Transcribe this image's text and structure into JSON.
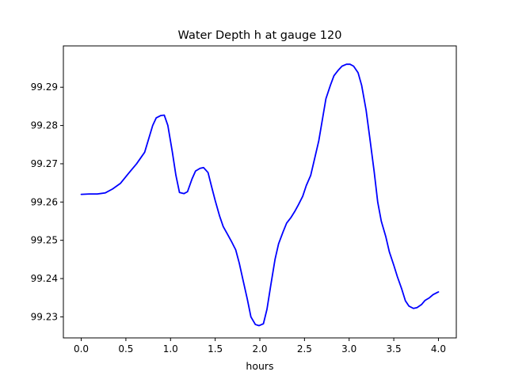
{
  "chart_data": {
    "type": "line",
    "title": "Water Depth h at gauge 120",
    "xlabel": "hours",
    "ylabel": "",
    "xlim": [
      -0.2,
      4.2
    ],
    "ylim": [
      99.2245,
      99.3008
    ],
    "xticks": [
      0.0,
      0.5,
      1.0,
      1.5,
      2.0,
      2.5,
      3.0,
      3.5,
      4.0
    ],
    "xtick_labels": [
      "0.0",
      "0.5",
      "1.0",
      "1.5",
      "2.0",
      "2.5",
      "3.0",
      "3.5",
      "4.0"
    ],
    "yticks": [
      99.23,
      99.24,
      99.25,
      99.26,
      99.27,
      99.28,
      99.29
    ],
    "ytick_labels": [
      "99.23",
      "99.24",
      "99.25",
      "99.26",
      "99.27",
      "99.28",
      "99.29"
    ],
    "grid": false,
    "line_color": "#0000ff",
    "series": [
      {
        "x": [
          0.0,
          0.09,
          0.18,
          0.27,
          0.35,
          0.44,
          0.53,
          0.62,
          0.71,
          0.8,
          0.84,
          0.89,
          0.93,
          0.97,
          1.02,
          1.06,
          1.1,
          1.15,
          1.19,
          1.24,
          1.28,
          1.33,
          1.37,
          1.42,
          1.46,
          1.5,
          1.55,
          1.59,
          1.64,
          1.68,
          1.73,
          1.77,
          1.81,
          1.86,
          1.9,
          1.95,
          1.99,
          2.04,
          2.08,
          2.12,
          2.17,
          2.21,
          2.26,
          2.3,
          2.35,
          2.39,
          2.43,
          2.48,
          2.52,
          2.57,
          2.61,
          2.66,
          2.7,
          2.74,
          2.79,
          2.83,
          2.88,
          2.92,
          2.97,
          3.01,
          3.05,
          3.1,
          3.14,
          3.19,
          3.23,
          3.28,
          3.32,
          3.36,
          3.41,
          3.45,
          3.5,
          3.54,
          3.59,
          3.63,
          3.67,
          3.72,
          3.76,
          3.81,
          3.85,
          3.9,
          3.94,
          3.99,
          4.0
        ],
        "y": [
          99.262,
          99.2621,
          99.2621,
          99.2624,
          99.2634,
          99.2649,
          99.2675,
          99.27,
          99.273,
          99.28,
          99.282,
          99.2826,
          99.2827,
          99.28,
          99.2731,
          99.267,
          99.2625,
          99.2622,
          99.2627,
          99.266,
          99.2681,
          99.2688,
          99.269,
          99.2677,
          99.264,
          99.2604,
          99.2563,
          99.2536,
          99.2515,
          99.2498,
          99.2475,
          99.244,
          99.2398,
          99.2346,
          99.23,
          99.228,
          99.2277,
          99.2282,
          99.232,
          99.2379,
          99.245,
          99.2491,
          99.2522,
          99.2545,
          99.256,
          99.2575,
          99.2592,
          99.2615,
          99.2643,
          99.267,
          99.271,
          99.276,
          99.2815,
          99.287,
          99.2905,
          99.293,
          99.2945,
          99.2955,
          99.296,
          99.296,
          99.2955,
          99.2938,
          99.2905,
          99.284,
          99.277,
          99.268,
          99.26,
          99.255,
          99.251,
          99.247,
          99.2435,
          99.2405,
          99.2372,
          99.2342,
          99.2328,
          99.2322,
          99.2324,
          99.2332,
          99.2343,
          99.235,
          99.2358,
          99.2364,
          99.2365
        ]
      }
    ]
  }
}
